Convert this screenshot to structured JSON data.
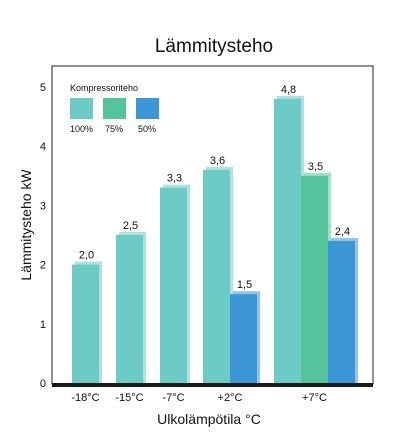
{
  "chart_data": {
    "type": "bar",
    "title": "Lämmitysteho",
    "xlabel": "Ulkolämpötila °C",
    "ylabel": "Lämmitysteho kW",
    "ylim": [
      0,
      5.3
    ],
    "yticks": [
      "0",
      "1",
      "2",
      "3",
      "4",
      "5"
    ],
    "grid": false,
    "legend": {
      "title": "Kompressoriteho",
      "placement": "top-left",
      "entries": [
        {
          "label": "100%",
          "color": "#6dcbc5"
        },
        {
          "label": "75%",
          "color": "#55c39b"
        },
        {
          "label": "50%",
          "color": "#3d96d5"
        }
      ]
    },
    "categories": [
      "-18°C",
      "-15°C",
      "-7°C",
      "+2°C",
      "+7°C"
    ],
    "series": [
      {
        "name": "100%",
        "color": "#6dcbc5",
        "values": [
          2.0,
          2.5,
          3.3,
          3.6,
          4.8
        ],
        "labels": [
          "2,0",
          "2,5",
          "3,3",
          "3,6",
          "4,8"
        ]
      },
      {
        "name": "75%",
        "color": "#55c39b",
        "values": [
          null,
          null,
          null,
          null,
          3.5
        ],
        "labels": [
          null,
          null,
          null,
          null,
          "3,5"
        ]
      },
      {
        "name": "50%",
        "color": "#3d96d5",
        "values": [
          null,
          null,
          null,
          1.5,
          2.4
        ],
        "labels": [
          null,
          null,
          null,
          "1,5",
          "2,4"
        ]
      }
    ]
  }
}
